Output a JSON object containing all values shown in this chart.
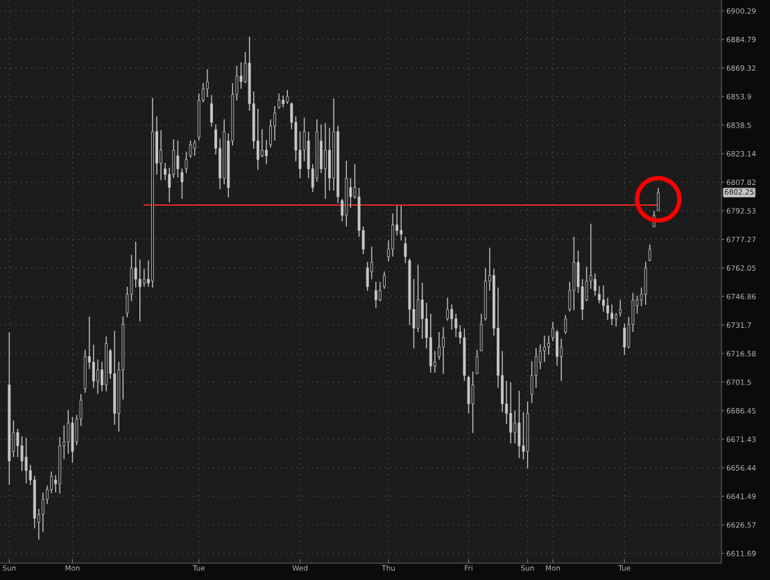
{
  "chart_data": {
    "type": "candlestick",
    "color": "#c8c8c8",
    "log": true,
    "grid": true,
    "categories": [
      "Sun",
      null,
      null,
      null,
      null,
      null,
      null,
      null,
      null,
      null,
      null,
      null,
      null,
      null,
      null,
      "Mon",
      null,
      null,
      null,
      null,
      null,
      null,
      null,
      null,
      null,
      null,
      null,
      null,
      null,
      null,
      null,
      null,
      null,
      null,
      null,
      null,
      null,
      null,
      null,
      null,
      null,
      null,
      null,
      null,
      null,
      "Tue",
      null,
      null,
      null,
      null,
      null,
      null,
      null,
      null,
      null,
      null,
      null,
      null,
      null,
      null,
      null,
      null,
      null,
      null,
      null,
      null,
      null,
      null,
      null,
      "Wed",
      null,
      null,
      null,
      null,
      null,
      null,
      null,
      null,
      null,
      null,
      null,
      null,
      null,
      null,
      null,
      null,
      null,
      null,
      null,
      null,
      "Thu",
      null,
      null,
      null,
      null,
      null,
      null,
      null,
      null,
      null,
      null,
      null,
      null,
      null,
      null,
      null,
      null,
      null,
      null,
      "Fri",
      null,
      null,
      null,
      null,
      null,
      null,
      null,
      null,
      null,
      null,
      null,
      null,
      null,
      "Sun",
      null,
      null,
      null,
      null,
      null,
      "Mon",
      null,
      null,
      null,
      null,
      null,
      null,
      null,
      null,
      null,
      null,
      null,
      null,
      null,
      null,
      null,
      null,
      "Tue",
      null,
      null,
      null,
      null,
      null,
      null,
      null,
      null
    ],
    "ohlc": [
      [
        6700,
        6727.8,
        6647.5,
        6660
      ],
      [
        6665,
        6681.3,
        6662,
        6675
      ],
      [
        6675,
        6676.9,
        6662,
        6668
      ],
      [
        6668,
        6672.9,
        6654.7,
        6660
      ],
      [
        6662,
        6672.2,
        6648.2,
        6655
      ],
      [
        6655,
        6658,
        6647.5,
        6650
      ],
      [
        6650,
        6652.2,
        6624.7,
        6630
      ],
      [
        6628,
        6634.9,
        6618.9,
        6632
      ],
      [
        6632,
        6643.5,
        6622.9,
        6640
      ],
      [
        6640,
        6647.1,
        6637.4,
        6645
      ],
      [
        6645,
        6654.4,
        6643.1,
        6652
      ],
      [
        6650,
        6652.6,
        6643.5,
        6648
      ],
      [
        6648,
        6672.5,
        6642.8,
        6668
      ],
      [
        6668,
        6678.7,
        6660.9,
        6670
      ],
      [
        6670,
        6686.8,
        6663.8,
        6680
      ],
      [
        6680,
        6683.1,
        6659.1,
        6665
      ],
      [
        6670,
        6684.2,
        6668.2,
        6682
      ],
      [
        6682,
        6695.2,
        6678.4,
        6692
      ],
      [
        6698,
        6718.6,
        6695.9,
        6715
      ],
      [
        6715,
        6736.2,
        6708.3,
        6712
      ],
      [
        6712,
        6721.2,
        6698.5,
        6702
      ],
      [
        6702,
        6713.4,
        6695.2,
        6708
      ],
      [
        6708,
        6712.3,
        6696.6,
        6700
      ],
      [
        6700,
        6725.6,
        6696.6,
        6722
      ],
      [
        6718,
        6719,
        6703.2,
        6706
      ],
      [
        6706,
        6728.6,
        6679,
        6685
      ],
      [
        6685,
        6712.2,
        6675.4,
        6708
      ],
      [
        6708,
        6736.2,
        6692.3,
        6732
      ],
      [
        6738,
        6752,
        6735.8,
        6748
      ],
      [
        6748,
        6769,
        6744.3,
        6762
      ],
      [
        6762,
        6776,
        6751.6,
        6756
      ],
      [
        6756,
        6766.4,
        6733.6,
        6752
      ],
      [
        6754,
        6761.6,
        6752,
        6756
      ],
      [
        6756,
        6766,
        6752,
        6754
      ],
      [
        6755,
        6853.3,
        6751.6,
        6835
      ],
      [
        6835,
        6843.2,
        6811.9,
        6818
      ],
      [
        6818,
        6835.7,
        6808.9,
        6825
      ],
      [
        6815,
        6818.2,
        6808.9,
        6812
      ],
      [
        6812,
        6815.6,
        6797,
        6805
      ],
      [
        6812,
        6830.9,
        6810,
        6825
      ],
      [
        6822,
        6830.2,
        6810.4,
        6815
      ],
      [
        6813,
        6815.2,
        6798.9,
        6808
      ],
      [
        6815,
        6824.2,
        6812.7,
        6820
      ],
      [
        6822,
        6830.2,
        6820.9,
        6828
      ],
      [
        6826,
        6830.5,
        6822,
        6829
      ],
      [
        6832,
        6855.5,
        6830.2,
        6852
      ],
      [
        6852,
        6861.1,
        6850.7,
        6858
      ],
      [
        6858,
        6868.6,
        6853.6,
        6862
      ],
      [
        6850,
        6854.7,
        6837.6,
        6840
      ],
      [
        6836,
        6838.9,
        6822.7,
        6826
      ],
      [
        6826,
        6831.3,
        6804.1,
        6810
      ],
      [
        6810,
        6841.6,
        6806.7,
        6835
      ],
      [
        6830,
        6834,
        6799.6,
        6805
      ],
      [
        6830,
        6861.1,
        6827.5,
        6855
      ],
      [
        6855,
        6870.5,
        6851.8,
        6865
      ],
      [
        6865,
        6872.4,
        6858.1,
        6862
      ],
      [
        6862,
        6878,
        6861.1,
        6872
      ],
      [
        6872,
        6886.3,
        6846.2,
        6850
      ],
      [
        6850,
        6856.6,
        6825.7,
        6830
      ],
      [
        6830,
        6847.3,
        6814.5,
        6820
      ],
      [
        6822,
        6836.3,
        6821.2,
        6825
      ],
      [
        6825,
        6830.5,
        6817.5,
        6822
      ],
      [
        6828,
        6841.6,
        6826.4,
        6838
      ],
      [
        6838,
        6848.8,
        6830.2,
        6845
      ],
      [
        6848,
        6855.5,
        6847.3,
        6852
      ],
      [
        6852,
        6854.4,
        6848,
        6850
      ],
      [
        6851,
        6857.4,
        6850,
        6854
      ],
      [
        6850,
        6850.7,
        6836.3,
        6840
      ],
      [
        6840,
        6843.2,
        6819,
        6825
      ],
      [
        6825,
        6835,
        6810,
        6815
      ],
      [
        6825,
        6842.5,
        6819,
        6835
      ],
      [
        6830,
        6835,
        6810,
        6815
      ],
      [
        6815,
        6817.5,
        6802.6,
        6805
      ],
      [
        6810,
        6841.6,
        6808.2,
        6835
      ],
      [
        6830,
        6838.9,
        6812.7,
        6815
      ],
      [
        6815,
        6839.6,
        6798.9,
        6825
      ],
      [
        6825,
        6837,
        6803.3,
        6810
      ],
      [
        6810,
        6852.9,
        6803.3,
        6835
      ],
      [
        6835,
        6838.1,
        6796.7,
        6800
      ],
      [
        6798,
        6798.9,
        6786.8,
        6790
      ],
      [
        6790,
        6819.3,
        6784.1,
        6810
      ],
      [
        6805,
        6810,
        6794.1,
        6800
      ],
      [
        6800,
        6817.5,
        6798.9,
        6805
      ],
      [
        6800,
        6804.8,
        6778.6,
        6782
      ],
      [
        6782,
        6784.1,
        6769.3,
        6772
      ],
      [
        6762,
        6765.3,
        6749.8,
        6752
      ],
      [
        6760,
        6773.4,
        6756.1,
        6765
      ],
      [
        6750,
        6754.6,
        6740.6,
        6745
      ],
      [
        6745,
        6754.6,
        6744.2,
        6750
      ],
      [
        6752,
        6760.1,
        6750.9,
        6758
      ],
      [
        6768,
        6776.7,
        6765.6,
        6772
      ],
      [
        6772,
        6791.1,
        6768.1,
        6785
      ],
      [
        6785,
        6795.2,
        6779.3,
        6782
      ],
      [
        6782,
        6795.2,
        6776.7,
        6780
      ],
      [
        6775,
        6778.6,
        6764.5,
        6768
      ],
      [
        6766,
        6767,
        6731.6,
        6740
      ],
      [
        6740,
        6756.1,
        6719.3,
        6730
      ],
      [
        6730,
        6763.7,
        6728,
        6745
      ],
      [
        6745,
        6754.2,
        6724.4,
        6735
      ],
      [
        6735,
        6743.5,
        6719.3,
        6725
      ],
      [
        6725,
        6737.7,
        6706.5,
        6710
      ],
      [
        6710,
        6717.9,
        6706.5,
        6712
      ],
      [
        6715,
        6728,
        6713.3,
        6720
      ],
      [
        6720,
        6730.5,
        6705.8,
        6725
      ],
      [
        6735,
        6746.1,
        6734,
        6740
      ],
      [
        6740,
        6742.6,
        6729.1,
        6735
      ],
      [
        6735,
        6737.7,
        6725.3,
        6730
      ],
      [
        6728,
        6731.6,
        6721.6,
        6725
      ],
      [
        6725,
        6729.8,
        6702.1,
        6705
      ],
      [
        6704,
        6704.8,
        6685,
        6690
      ],
      [
        6690,
        6707,
        6674.7,
        6700
      ],
      [
        6706,
        6718.6,
        6705.8,
        6715
      ],
      [
        6718,
        6737.7,
        6717.7,
        6732
      ],
      [
        6735,
        6762,
        6734,
        6755
      ],
      [
        6755,
        6772.8,
        6749.8,
        6758
      ],
      [
        6758,
        6761.6,
        6726,
        6730
      ],
      [
        6730,
        6751.6,
        6698.5,
        6705
      ],
      [
        6705,
        6717.9,
        6685.7,
        6690
      ],
      [
        6690,
        6702.1,
        6679.4,
        6685
      ],
      [
        6685,
        6701.4,
        6669.2,
        6675
      ],
      [
        6675,
        6686.5,
        6669.2,
        6680
      ],
      [
        6680,
        6696.9,
        6661.5,
        6668
      ],
      [
        6668,
        6685.7,
        6660.8,
        6665
      ],
      [
        6665,
        6691.2,
        6656.1,
        6685
      ],
      [
        6695,
        6712.5,
        6690.5,
        6705
      ],
      [
        6705,
        6719.5,
        6698.5,
        6715
      ],
      [
        6712,
        6721.4,
        6708.3,
        6718
      ],
      [
        6718,
        6726,
        6712.2,
        6720
      ],
      [
        6720,
        6726,
        6715.9,
        6722
      ],
      [
        6725,
        6733.4,
        6723.1,
        6730
      ],
      [
        6728,
        6729.1,
        6710.1,
        6715
      ],
      [
        6715,
        6724.4,
        6702.1,
        6720
      ],
      [
        6728,
        6737,
        6726.9,
        6735
      ],
      [
        6740,
        6754.6,
        6738.8,
        6750
      ],
      [
        6750,
        6778.6,
        6739.5,
        6765
      ],
      [
        6765,
        6771.3,
        6748.7,
        6752
      ],
      [
        6752,
        6756.1,
        6734.4,
        6740
      ],
      [
        6745,
        6762.7,
        6744.3,
        6755
      ],
      [
        6755,
        6785.6,
        6750.9,
        6758
      ],
      [
        6756,
        6759,
        6747.2,
        6750
      ],
      [
        6748,
        6752.4,
        6743.2,
        6745
      ],
      [
        6745,
        6752.7,
        6738.8,
        6742
      ],
      [
        6742,
        6746.1,
        6734.4,
        6738
      ],
      [
        6738,
        6742.6,
        6731.6,
        6735
      ],
      [
        6735,
        6738.1,
        6730.9,
        6737
      ],
      [
        6738,
        6745.1,
        6736.2,
        6740
      ],
      [
        6730,
        6732.4,
        6715.9,
        6720
      ],
      [
        6720,
        6736,
        6719.3,
        6732
      ],
      [
        6732,
        6748.7,
        6728,
        6745
      ],
      [
        6742,
        6747.2,
        6737.7,
        6745
      ],
      [
        6745,
        6751.6,
        6741.7,
        6748
      ],
      [
        6748,
        6765.3,
        6742.4,
        6762
      ],
      [
        6766,
        6774.5,
        6765.6,
        6772
      ],
      [
        6784,
        6792.5,
        6783.9,
        6790
      ],
      [
        6792.5,
        6804.8,
        6792.5,
        6802.25
      ]
    ],
    "series": [
      {
        "type": "line",
        "color": "#ff2a2a",
        "values": [
          null,
          null,
          null,
          null,
          null,
          null,
          null,
          null,
          null,
          null,
          null,
          null,
          null,
          null,
          null,
          null,
          null,
          null,
          null,
          null,
          null,
          null,
          null,
          null,
          null,
          null,
          null,
          null,
          null,
          null,
          null,
          null,
          6795.6,
          6795.6,
          6795.6,
          6795.6,
          6795.6,
          6795.6,
          6795.6,
          6795.6,
          6795.6,
          6795.6,
          6795.6,
          6795.6,
          6795.6,
          6795.6,
          6795.6,
          6795.6,
          6795.6,
          6795.6,
          6795.6,
          6795.6,
          6795.6,
          6795.6,
          6795.6,
          6795.6,
          6795.6,
          6795.6,
          6795.6,
          6795.6,
          6795.6,
          6795.6,
          6795.6,
          6795.6,
          6795.6,
          6795.6,
          6795.6,
          6795.6,
          6795.6,
          6795.6,
          6795.6,
          6795.6,
          6795.6,
          6795.6,
          6795.6,
          6795.6,
          6795.6,
          6795.6,
          6795.6,
          6795.6,
          6795.6,
          6795.6,
          6795.6,
          6795.6,
          6795.6,
          6795.6,
          6795.6,
          6795.6,
          6795.6,
          6795.6,
          6795.6,
          6795.6,
          6795.6,
          6795.6,
          6795.6,
          6795.6,
          6795.6,
          6795.6,
          6795.6,
          6795.6,
          6795.6,
          6795.6,
          6795.6,
          6795.6,
          6795.6,
          6795.6,
          6795.6,
          6795.6,
          6795.6,
          6795.6,
          6795.6,
          6795.6,
          6795.6,
          6795.6,
          6795.6,
          6795.6,
          6795.6,
          6795.6,
          6795.6,
          6795.6,
          6795.6,
          6795.6,
          6795.6,
          6795.6,
          6795.6,
          6795.6,
          6795.6,
          6795.6,
          6795.6,
          6795.6,
          6795.6,
          6795.6,
          6795.6,
          6795.6,
          6795.6,
          6795.6,
          6795.6,
          6795.6,
          6795.6,
          6795.6,
          6795.6,
          6795.6,
          6795.6,
          6795.6,
          6795.6,
          6795.6,
          6795.6,
          6795.6,
          6795.6,
          6795.6,
          6795.6,
          6795.6,
          6795.6,
          6795.6,
          6795.6
        ]
      }
    ],
    "annotations": [
      "6802.25"
    ],
    "ylim": [
      6606.6,
      6906.2
    ],
    "yticks": [
      6611.69,
      6626.57,
      6641.49,
      6656.44,
      6671.43,
      6686.45,
      6701.5,
      6716.58,
      6731.7,
      6746.86,
      6762.05,
      6777.27,
      6792.53,
      6807.82,
      6823.14,
      6838.5,
      6853.9,
      6869.32,
      6884.79,
      6900.29
    ]
  }
}
